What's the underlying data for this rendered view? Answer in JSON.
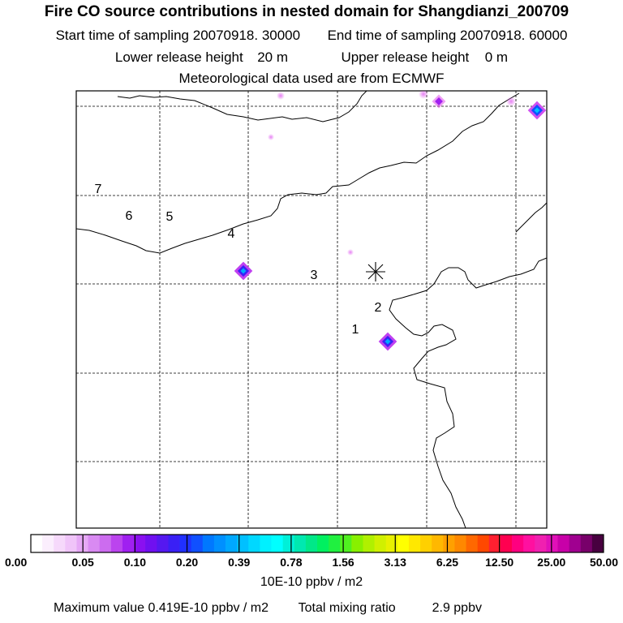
{
  "title": "Fire CO source contributions in nested domain for Shangdianzi_200709",
  "sampling": {
    "start_label": "Start time of sampling",
    "start_value": "20070918. 30000",
    "end_label": "End time of sampling",
    "end_value": "20070918. 60000"
  },
  "release": {
    "lower_label": "Lower release height",
    "lower_value": "20 m",
    "upper_label": "Upper release height",
    "upper_value": "0 m"
  },
  "met_note": "Meteorological data used are from ECMWF",
  "map_labels": [
    "7",
    "6",
    "5",
    "4",
    "3",
    "2",
    "1"
  ],
  "colorbar": {
    "tick_labels": [
      "0.00",
      "0.05",
      "0.10",
      "0.20",
      "0.39",
      "0.78",
      "1.56",
      "3.13",
      "6.25",
      "12.50",
      "25.00",
      "50.00"
    ],
    "unit": "10E-10 ppbv / m2",
    "colors": [
      "#ffffff",
      "#fbeefd",
      "#f6d9fb",
      "#f0c4f9",
      "#e6a8f6",
      "#d98af2",
      "#cc6cef",
      "#bb44ee",
      "#a020f0",
      "#8a10f0",
      "#7010f0",
      "#5518f0",
      "#3a20f5",
      "#2030ff",
      "#1050ff",
      "#0078ff",
      "#0090ff",
      "#00a8ff",
      "#00c0ff",
      "#00d8ff",
      "#00f0ff",
      "#00ffff",
      "#00f0d8",
      "#00e8b0",
      "#00e888",
      "#00f060",
      "#20f040",
      "#50f020",
      "#88f000",
      "#b0f000",
      "#d0f000",
      "#e8f000",
      "#ffff00",
      "#ffe800",
      "#ffd000",
      "#ffb800",
      "#ffa000",
      "#ff8800",
      "#ff6800",
      "#ff4800",
      "#ff2030",
      "#ff0050",
      "#ff0080",
      "#ff10a0",
      "#f020b0",
      "#e010b8",
      "#c800a8",
      "#a00090",
      "#78006a",
      "#480040"
    ]
  },
  "footer": {
    "max_label": "Maximum value",
    "max_value": "0.419E-10 ppbv / m2",
    "total_label": "Total mixing ratio",
    "total_value": "2.9 ppbv"
  }
}
